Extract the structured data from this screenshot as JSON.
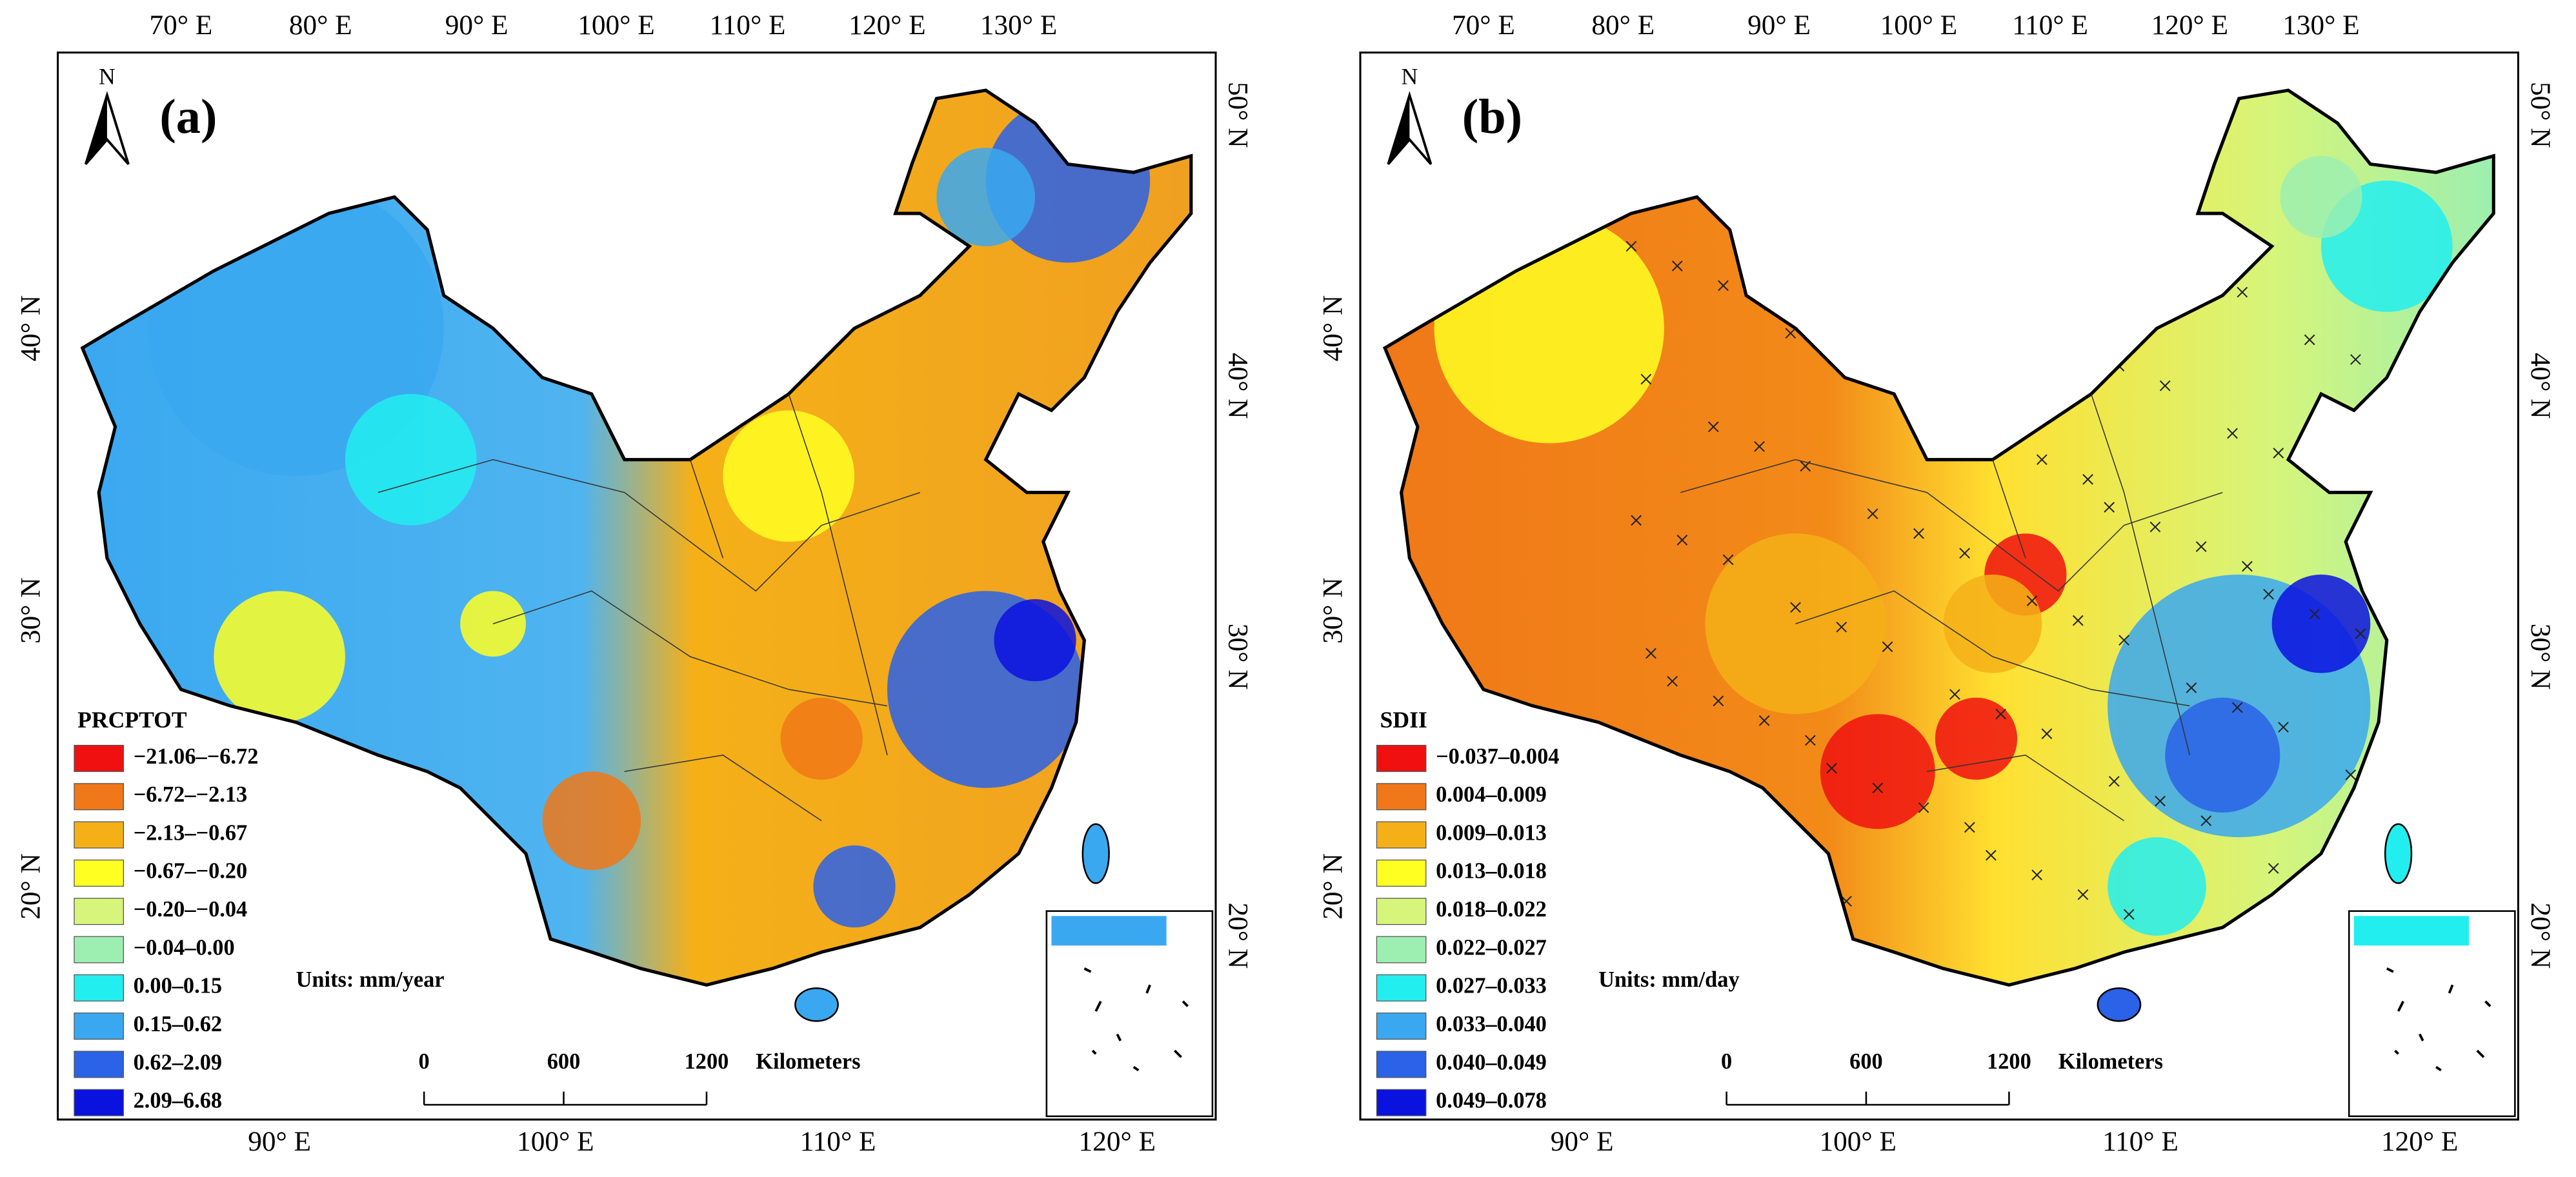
{
  "panels": [
    {
      "label": "(a)",
      "north": "N",
      "legend_title": "PRCPTOT",
      "units": "Units: mm/year",
      "legend": [
        {
          "label": "−21.06–−6.72",
          "color": "#f01010"
        },
        {
          "label": "−6.72–−2.13",
          "color": "#f07818"
        },
        {
          "label": "−2.13–−0.67",
          "color": "#f5b018"
        },
        {
          "label": "−0.67–−0.20",
          "color": "#ffff22"
        },
        {
          "label": "−0.20–−0.04",
          "color": "#d6f57a"
        },
        {
          "label": "−0.04–0.00",
          "color": "#9cefb0"
        },
        {
          "label": "0.00–0.15",
          "color": "#22eef0"
        },
        {
          "label": "0.15–0.62",
          "color": "#3aa8f0"
        },
        {
          "label": "0.62–2.09",
          "color": "#2a62e8"
        },
        {
          "label": "2.09–6.68",
          "color": "#0a12e0"
        }
      ],
      "scale": [
        "0",
        "600",
        "1200",
        "Kilometers"
      ],
      "lon_top": [
        "70° E",
        "80° E",
        "90° E",
        "100° E",
        "110° E",
        "120° E",
        "130° E"
      ],
      "lon_bottom": [
        "90° E",
        "100° E",
        "110° E",
        "120° E"
      ],
      "lat_left": [
        "40° N",
        "30° N",
        "20° N"
      ],
      "lat_right": [
        "50° N",
        "40° N",
        "30° N",
        "20° N"
      ]
    },
    {
      "label": "(b)",
      "north": "N",
      "legend_title": "SDII",
      "units": "Units: mm/day",
      "legend": [
        {
          "label": "−0.037–0.004",
          "color": "#f01010"
        },
        {
          "label": "0.004–0.009",
          "color": "#f07818"
        },
        {
          "label": "0.009–0.013",
          "color": "#f5b018"
        },
        {
          "label": "0.013–0.018",
          "color": "#ffff22"
        },
        {
          "label": "0.018–0.022",
          "color": "#d6f57a"
        },
        {
          "label": "0.022–0.027",
          "color": "#9cefb0"
        },
        {
          "label": "0.027–0.033",
          "color": "#22eef0"
        },
        {
          "label": "0.033–0.040",
          "color": "#3aa8f0"
        },
        {
          "label": "0.040–0.049",
          "color": "#2a62e8"
        },
        {
          "label": "0.049–0.078",
          "color": "#0a12e0"
        }
      ],
      "scale": [
        "0",
        "600",
        "1200",
        "Kilometers"
      ],
      "lon_top": [
        "70° E",
        "80° E",
        "90° E",
        "100° E",
        "110° E",
        "120° E",
        "130° E"
      ],
      "lon_bottom": [
        "90° E",
        "100° E",
        "110° E",
        "120° E"
      ],
      "lat_left": [
        "40° N",
        "30° N",
        "20° N"
      ],
      "lat_right": [
        "50° N",
        "40° N",
        "30° N",
        "20° N"
      ]
    }
  ]
}
